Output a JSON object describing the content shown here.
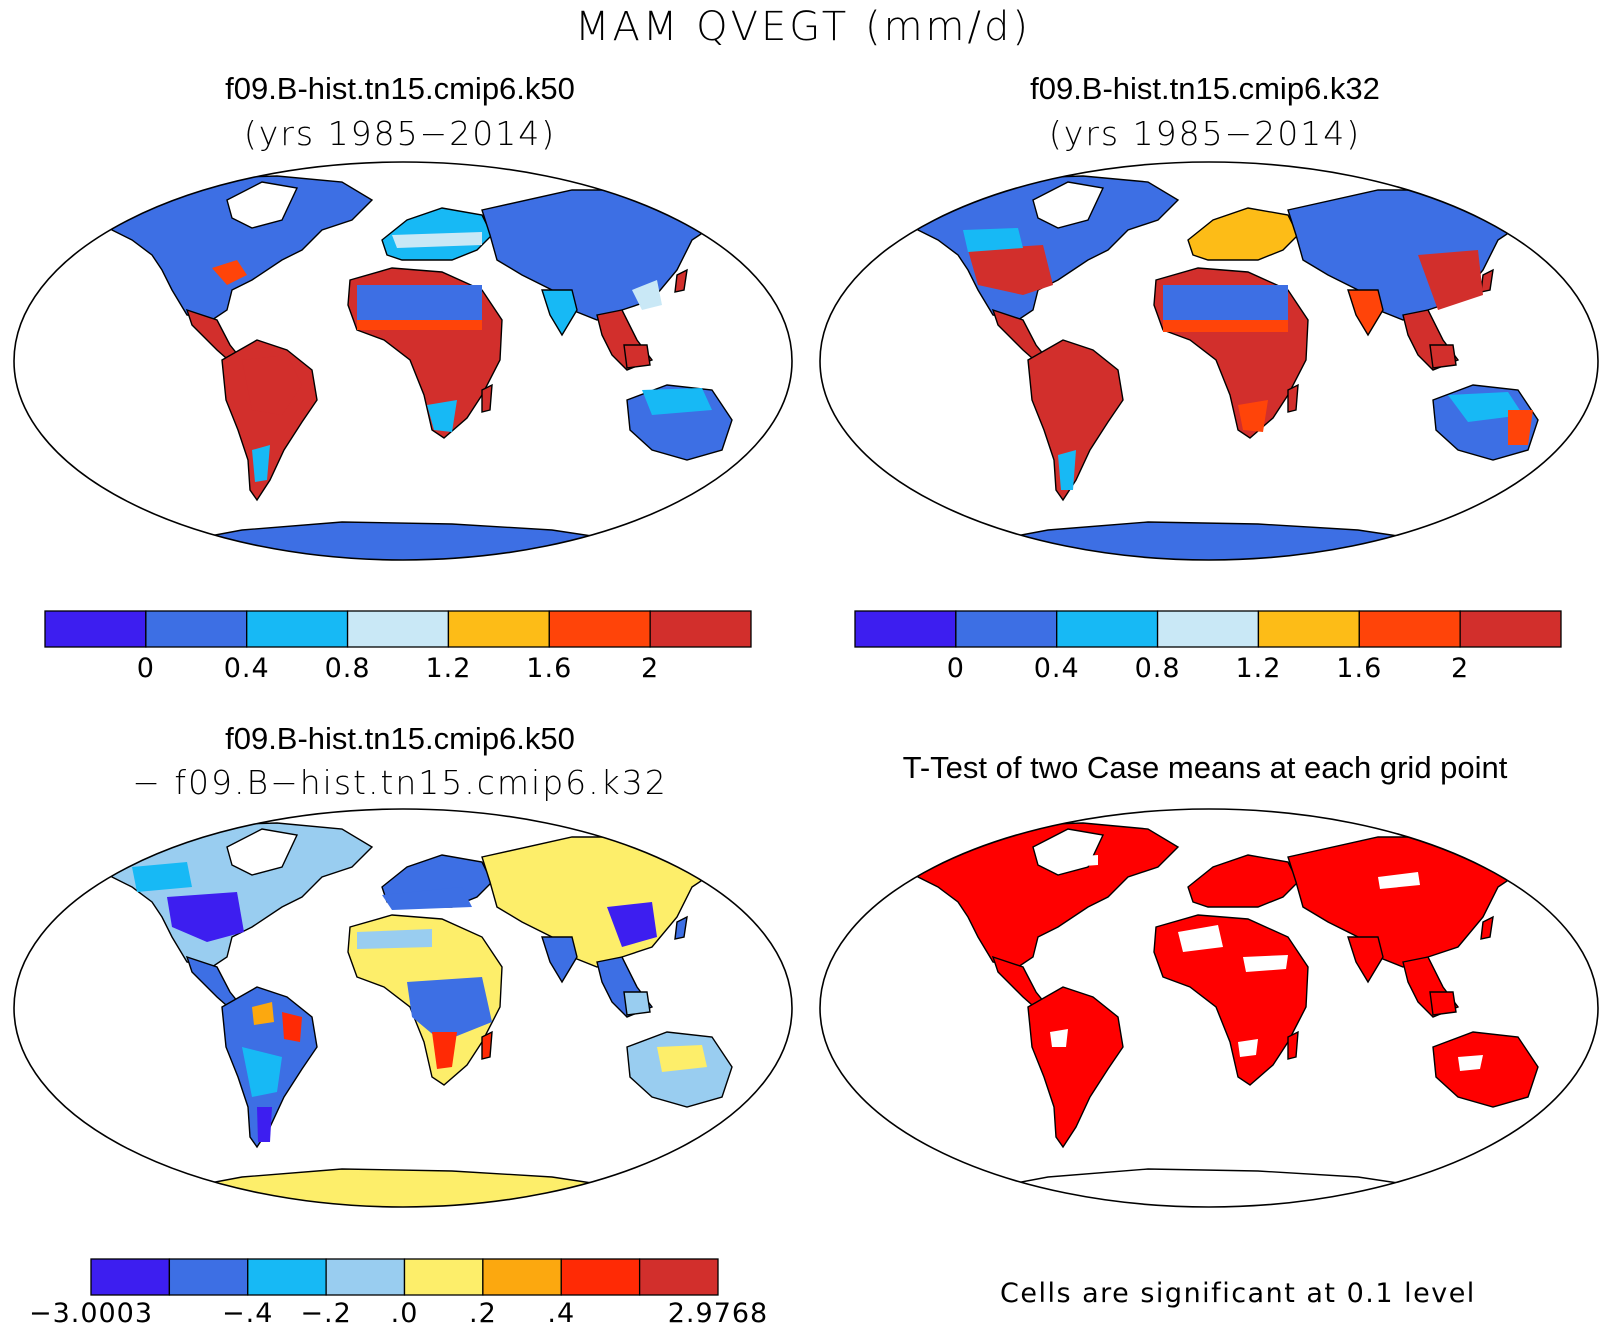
{
  "title": "MAM QVEGT (mm/d)",
  "panels": [
    {
      "id": "k50",
      "title": "f09.B-hist.tn15.cmip6.k50",
      "subtitle": "(yrs 1985−2014)",
      "colorbar": {
        "colors": [
          "#3d1ef0",
          "#3d6fe4",
          "#17b9f5",
          "#c9e8f6",
          "#fdbc17",
          "#ff4409",
          "#d22f2c"
        ],
        "labels": [
          "0",
          "0.4",
          "0.8",
          "1.2",
          "1.6",
          "2"
        ]
      }
    },
    {
      "id": "k32",
      "title": "f09.B-hist.tn15.cmip6.k32",
      "subtitle": "(yrs 1985−2014)",
      "colorbar": {
        "colors": [
          "#3d1ef0",
          "#3d6fe4",
          "#17b9f5",
          "#c9e8f6",
          "#fdbc17",
          "#ff4409",
          "#d22f2c"
        ],
        "labels": [
          "0",
          "0.4",
          "0.8",
          "1.2",
          "1.6",
          "2"
        ]
      }
    },
    {
      "id": "diff",
      "title": "f09.B-hist.tn15.cmip6.k50",
      "subtitle": "− f09.B−hist.tn15.cmip6.k32",
      "colorbar": {
        "colors": [
          "#3d1ef0",
          "#3d6fe4",
          "#17b9f5",
          "#99cdf0",
          "#fdee6a",
          "#fca80f",
          "#ff2a05",
          "#d22f2c"
        ],
        "labels": [
          "−3.0003",
          "−.4",
          "−.2",
          ".0",
          ".2",
          ".4",
          "2.9768"
        ]
      }
    },
    {
      "id": "ttest",
      "title": "T-Test of two Case means at each grid point",
      "note": "Cells are significant at 0.1 level",
      "significant_color": "#ff0000"
    }
  ]
}
